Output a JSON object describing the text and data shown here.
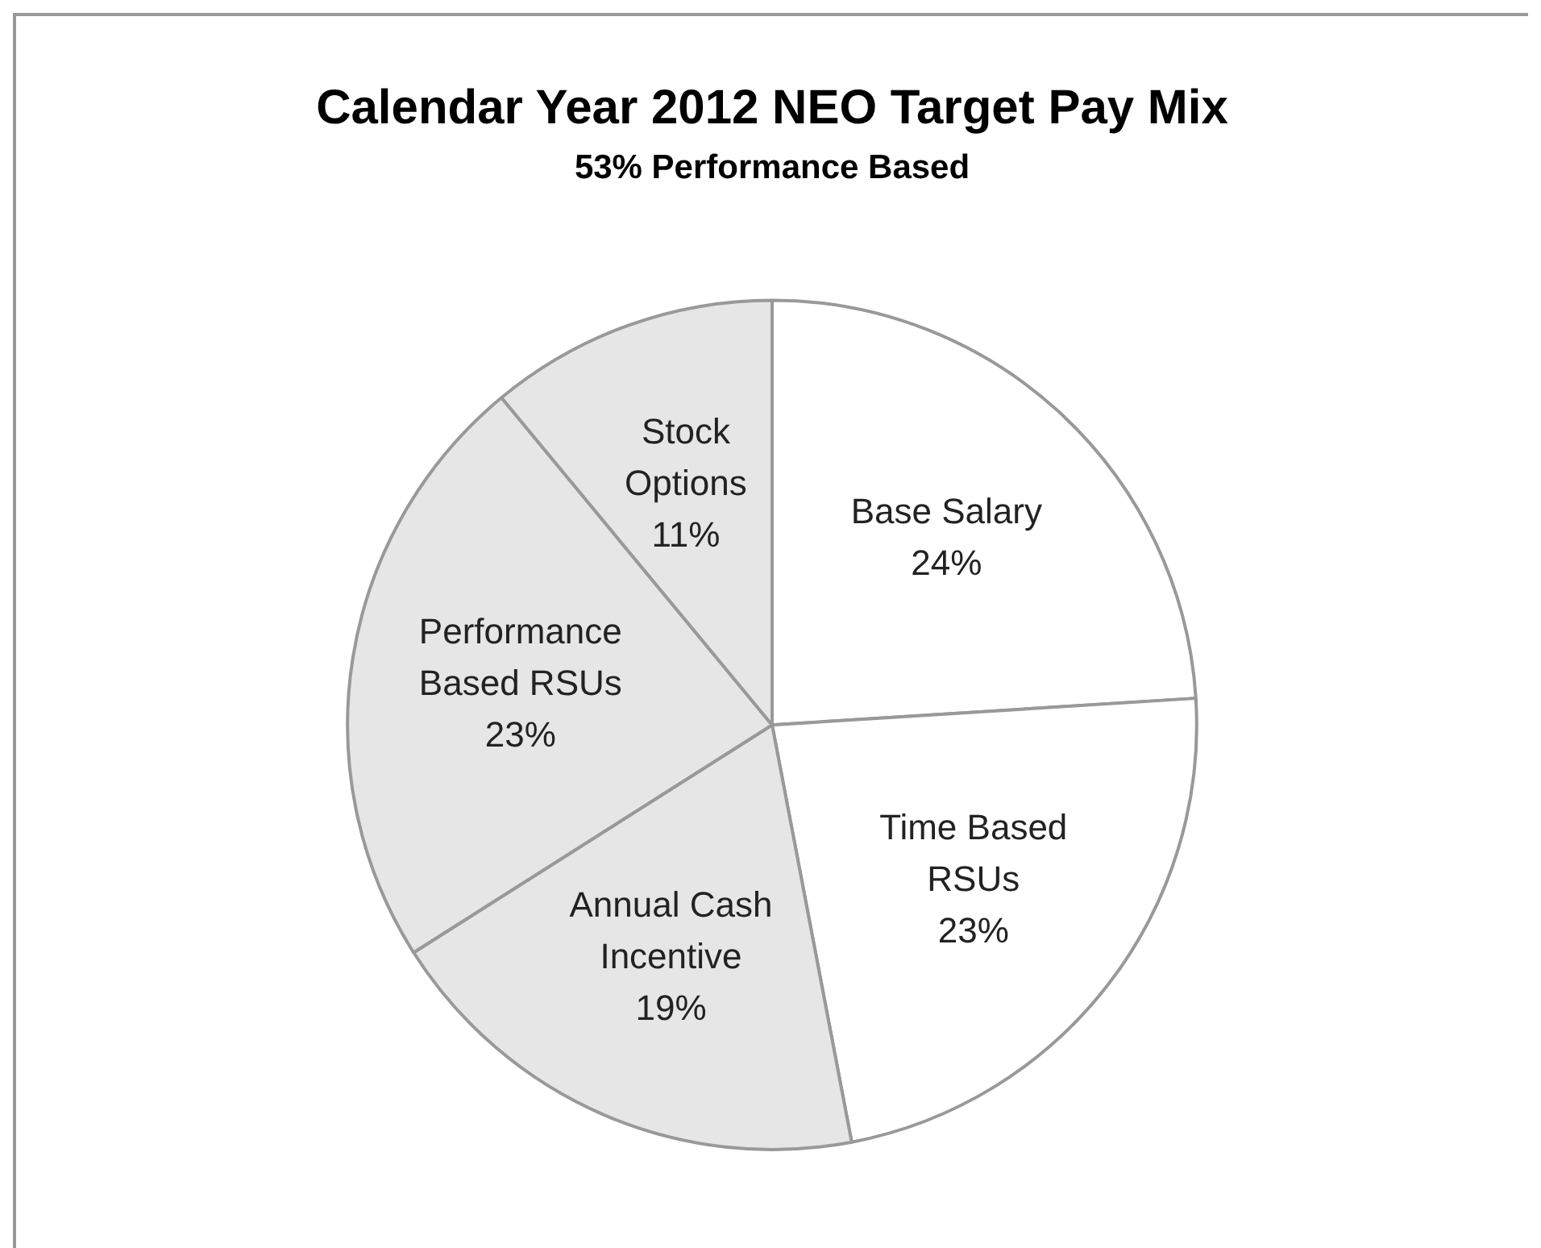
{
  "chart_data": {
    "type": "pie",
    "title": "Calendar Year 2012 NEO Target Pay Mix",
    "subtitle": "53% Performance Based",
    "categories": [
      "Base Salary",
      "Time Based RSUs",
      "Annual Cash Incentive",
      "Performance Based RSUs",
      "Stock Options"
    ],
    "values": [
      24,
      23,
      19,
      23,
      11
    ],
    "value_labels": [
      "24%",
      "23%",
      "19%",
      "23%",
      "11%"
    ],
    "colors": [
      "#ffffff",
      "#ffffff",
      "#e6e6e6",
      "#e6e6e6",
      "#e6e6e6"
    ],
    "legend": false
  }
}
